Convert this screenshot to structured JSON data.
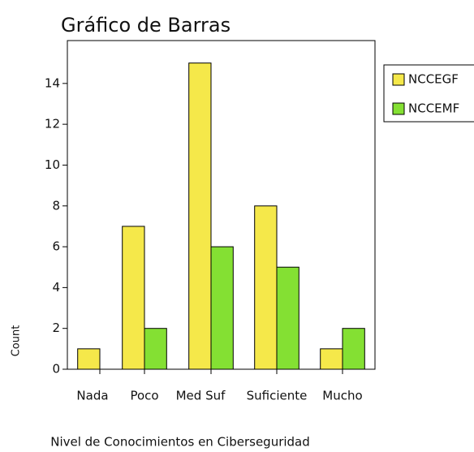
{
  "chart_data": {
    "type": "bar",
    "title": "Gráfico de Barras",
    "x_label": "Nivel de Conocimientos en Ciberseguridad",
    "y_label": "Count",
    "categories": [
      "Nada",
      "Poco",
      "Med Suf",
      "Suficiente",
      "Mucho"
    ],
    "series": [
      {
        "name": "NCCEGF",
        "color": "#f5e84a",
        "values": [
          1,
          7,
          15,
          8,
          1
        ]
      },
      {
        "name": "NCCEMF",
        "color": "#84e033",
        "values": [
          0,
          2,
          6,
          5,
          2
        ]
      }
    ],
    "ylim": [
      0,
      16.1
    ],
    "yticks": [
      0,
      2,
      4,
      6,
      8,
      10,
      12,
      14
    ],
    "legend": "right"
  }
}
